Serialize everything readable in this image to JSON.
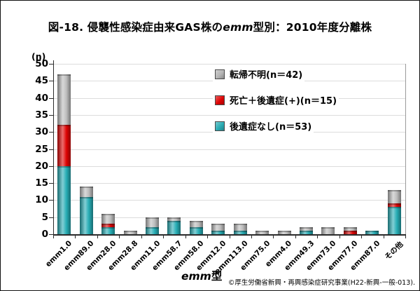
{
  "figure": {
    "title": {
      "prefix": "図-18. 侵襲性感染症由来GAS株の",
      "italic": "emm",
      "suffix": "型別：2010年度分離株"
    },
    "y_axis_unit": "(n)",
    "x_axis_title": {
      "italic": "emm",
      "suffix": "型"
    },
    "credit": "©厚生労働省新興・再興感染症研究事業(H22-新興-一般-013)."
  },
  "chart_data": {
    "type": "bar",
    "stacked": true,
    "title": "図-18. 侵襲性感染症由来GAS株のemm型別：2010年度分離株",
    "xlabel": "emm型",
    "ylabel": "(n)",
    "ylim": [
      0,
      50
    ],
    "ytick_step": 5,
    "grid": true,
    "legend_position": "top-right",
    "categories": [
      "emm1.0",
      "emm89.0",
      "emm28.0",
      "emm28.8",
      "emm11.0",
      "emm58.7",
      "emm58.0",
      "emm12.0",
      "emm113.0",
      "emm75.0",
      "emm4.0",
      "emm49.3",
      "emm73.0",
      "emm77.0",
      "emm87.0",
      "その他"
    ],
    "series": [
      {
        "name": "後遺症なし(n＝53)",
        "color": "#27adb5",
        "values": [
          20,
          11,
          2,
          0,
          2,
          4,
          2,
          1,
          1,
          0,
          0,
          1,
          0,
          0,
          1,
          8
        ]
      },
      {
        "name": "死亡＋後遺症(+)(n＝15)",
        "color": "#de0404",
        "values": [
          12,
          0,
          1,
          0,
          0,
          0,
          0,
          0,
          0,
          0,
          0,
          0,
          0,
          1,
          0,
          1
        ]
      },
      {
        "name": "転帰不明(n＝42)",
        "color": "#bdbdbd",
        "values": [
          15,
          3,
          3,
          1,
          3,
          1,
          2,
          2,
          2,
          1,
          1,
          1,
          2,
          1,
          0,
          4
        ]
      }
    ],
    "totals": [
      47,
      14,
      6,
      1,
      5,
      5,
      4,
      3,
      3,
      1,
      1,
      2,
      2,
      2,
      1,
      13
    ],
    "legend": [
      {
        "label": "転帰不明(n＝42)",
        "color": "#b5b5b5"
      },
      {
        "label": "死亡＋後遺症(+)(n＝15)",
        "color": "#de0404"
      },
      {
        "label": "後遺症なし(n＝53)",
        "color": "#2aacb4"
      }
    ]
  }
}
